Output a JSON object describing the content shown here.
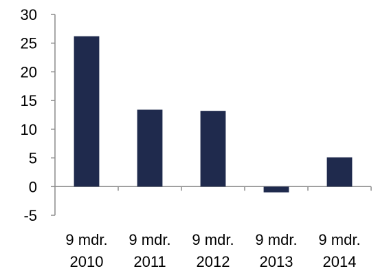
{
  "chart_data": {
    "type": "bar",
    "categories": [
      [
        "9 mdr.",
        "2010"
      ],
      [
        "9 mdr.",
        "2011"
      ],
      [
        "9 mdr.",
        "2012"
      ],
      [
        "9 mdr.",
        "2013"
      ],
      [
        "9 mdr.",
        "2014"
      ]
    ],
    "values": [
      26.2,
      13.4,
      13.2,
      -1.0,
      5.1
    ],
    "ylim": [
      -5,
      30
    ],
    "yticks": [
      -5,
      0,
      5,
      10,
      15,
      20,
      25,
      30
    ],
    "bar_color": "#1f2a4d",
    "axis_color": "#8c8c8c",
    "grid": false,
    "legend": "none"
  }
}
